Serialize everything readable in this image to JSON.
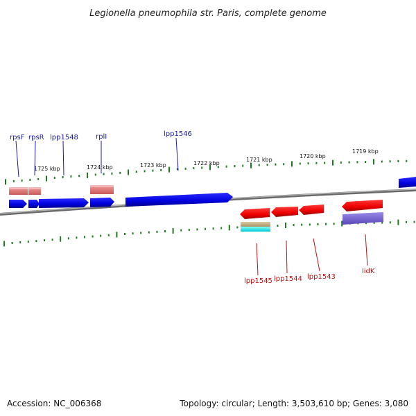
{
  "title": "Legionella pneumophila str. Paris, complete genome",
  "footer": {
    "accession": "Accession: NC_006368",
    "summary": "Topology: circular; Length: 3,503,610 bp; Genes: 3,080"
  },
  "scale_labels": [
    "1725 kbp",
    "1724 kbp",
    "1723 kbp",
    "1722 kbp",
    "1721 kbp",
    "1720 kbp",
    "1719 kbp"
  ],
  "genes_top": [
    {
      "label": "rpsF"
    },
    {
      "label": "rpsR"
    },
    {
      "label": "lpp1548"
    },
    {
      "label": "rplI"
    },
    {
      "label": "lpp1546"
    }
  ],
  "genes_bottom": [
    {
      "label": "lpp1545"
    },
    {
      "label": "lpp1544"
    },
    {
      "label": "lpp1543"
    },
    {
      "label": "lidK"
    }
  ],
  "colors": {
    "forward": "#1010e0",
    "reverse": "#ee1010",
    "rna_top": "#e07a7a",
    "tick": "#1f7a1f",
    "backbone": "#808080"
  }
}
